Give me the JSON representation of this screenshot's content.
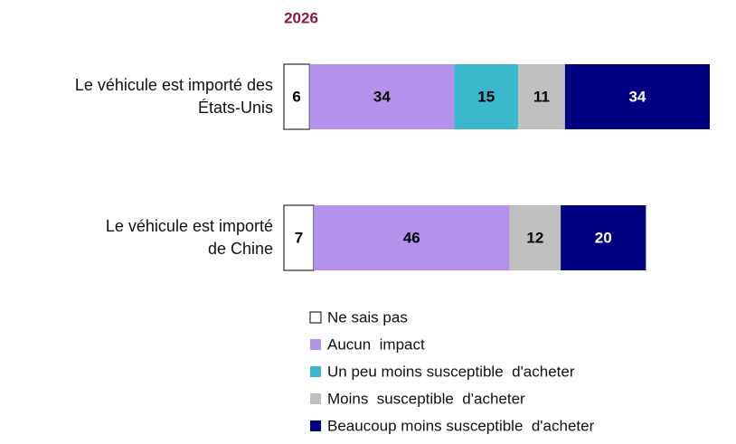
{
  "chart_data": {
    "type": "stacked-bar-horizontal",
    "title": "2026",
    "categories": [
      "Le véhicule est importé des\nÉtats-Unis",
      "Le véhicule est importé\nde Chine"
    ],
    "series": [
      {
        "name": "Ne sais pas",
        "color": "#ffffff",
        "values": [
          6,
          7
        ]
      },
      {
        "name": "Aucun  impact",
        "color": "#b491eb",
        "values": [
          34,
          46
        ]
      },
      {
        "name": "Un peu moins susceptible  d'acheter",
        "color": "#3cb8cc",
        "values": [
          15,
          null
        ]
      },
      {
        "name": "Moins  susceptible  d'acheter",
        "color": "#c0c0c0",
        "values": [
          11,
          12
        ]
      },
      {
        "name": "Beaucoup moins susceptible  d'acheter",
        "color": "#000080",
        "values": [
          34,
          20
        ]
      }
    ],
    "xlim": [
      0,
      100
    ]
  }
}
